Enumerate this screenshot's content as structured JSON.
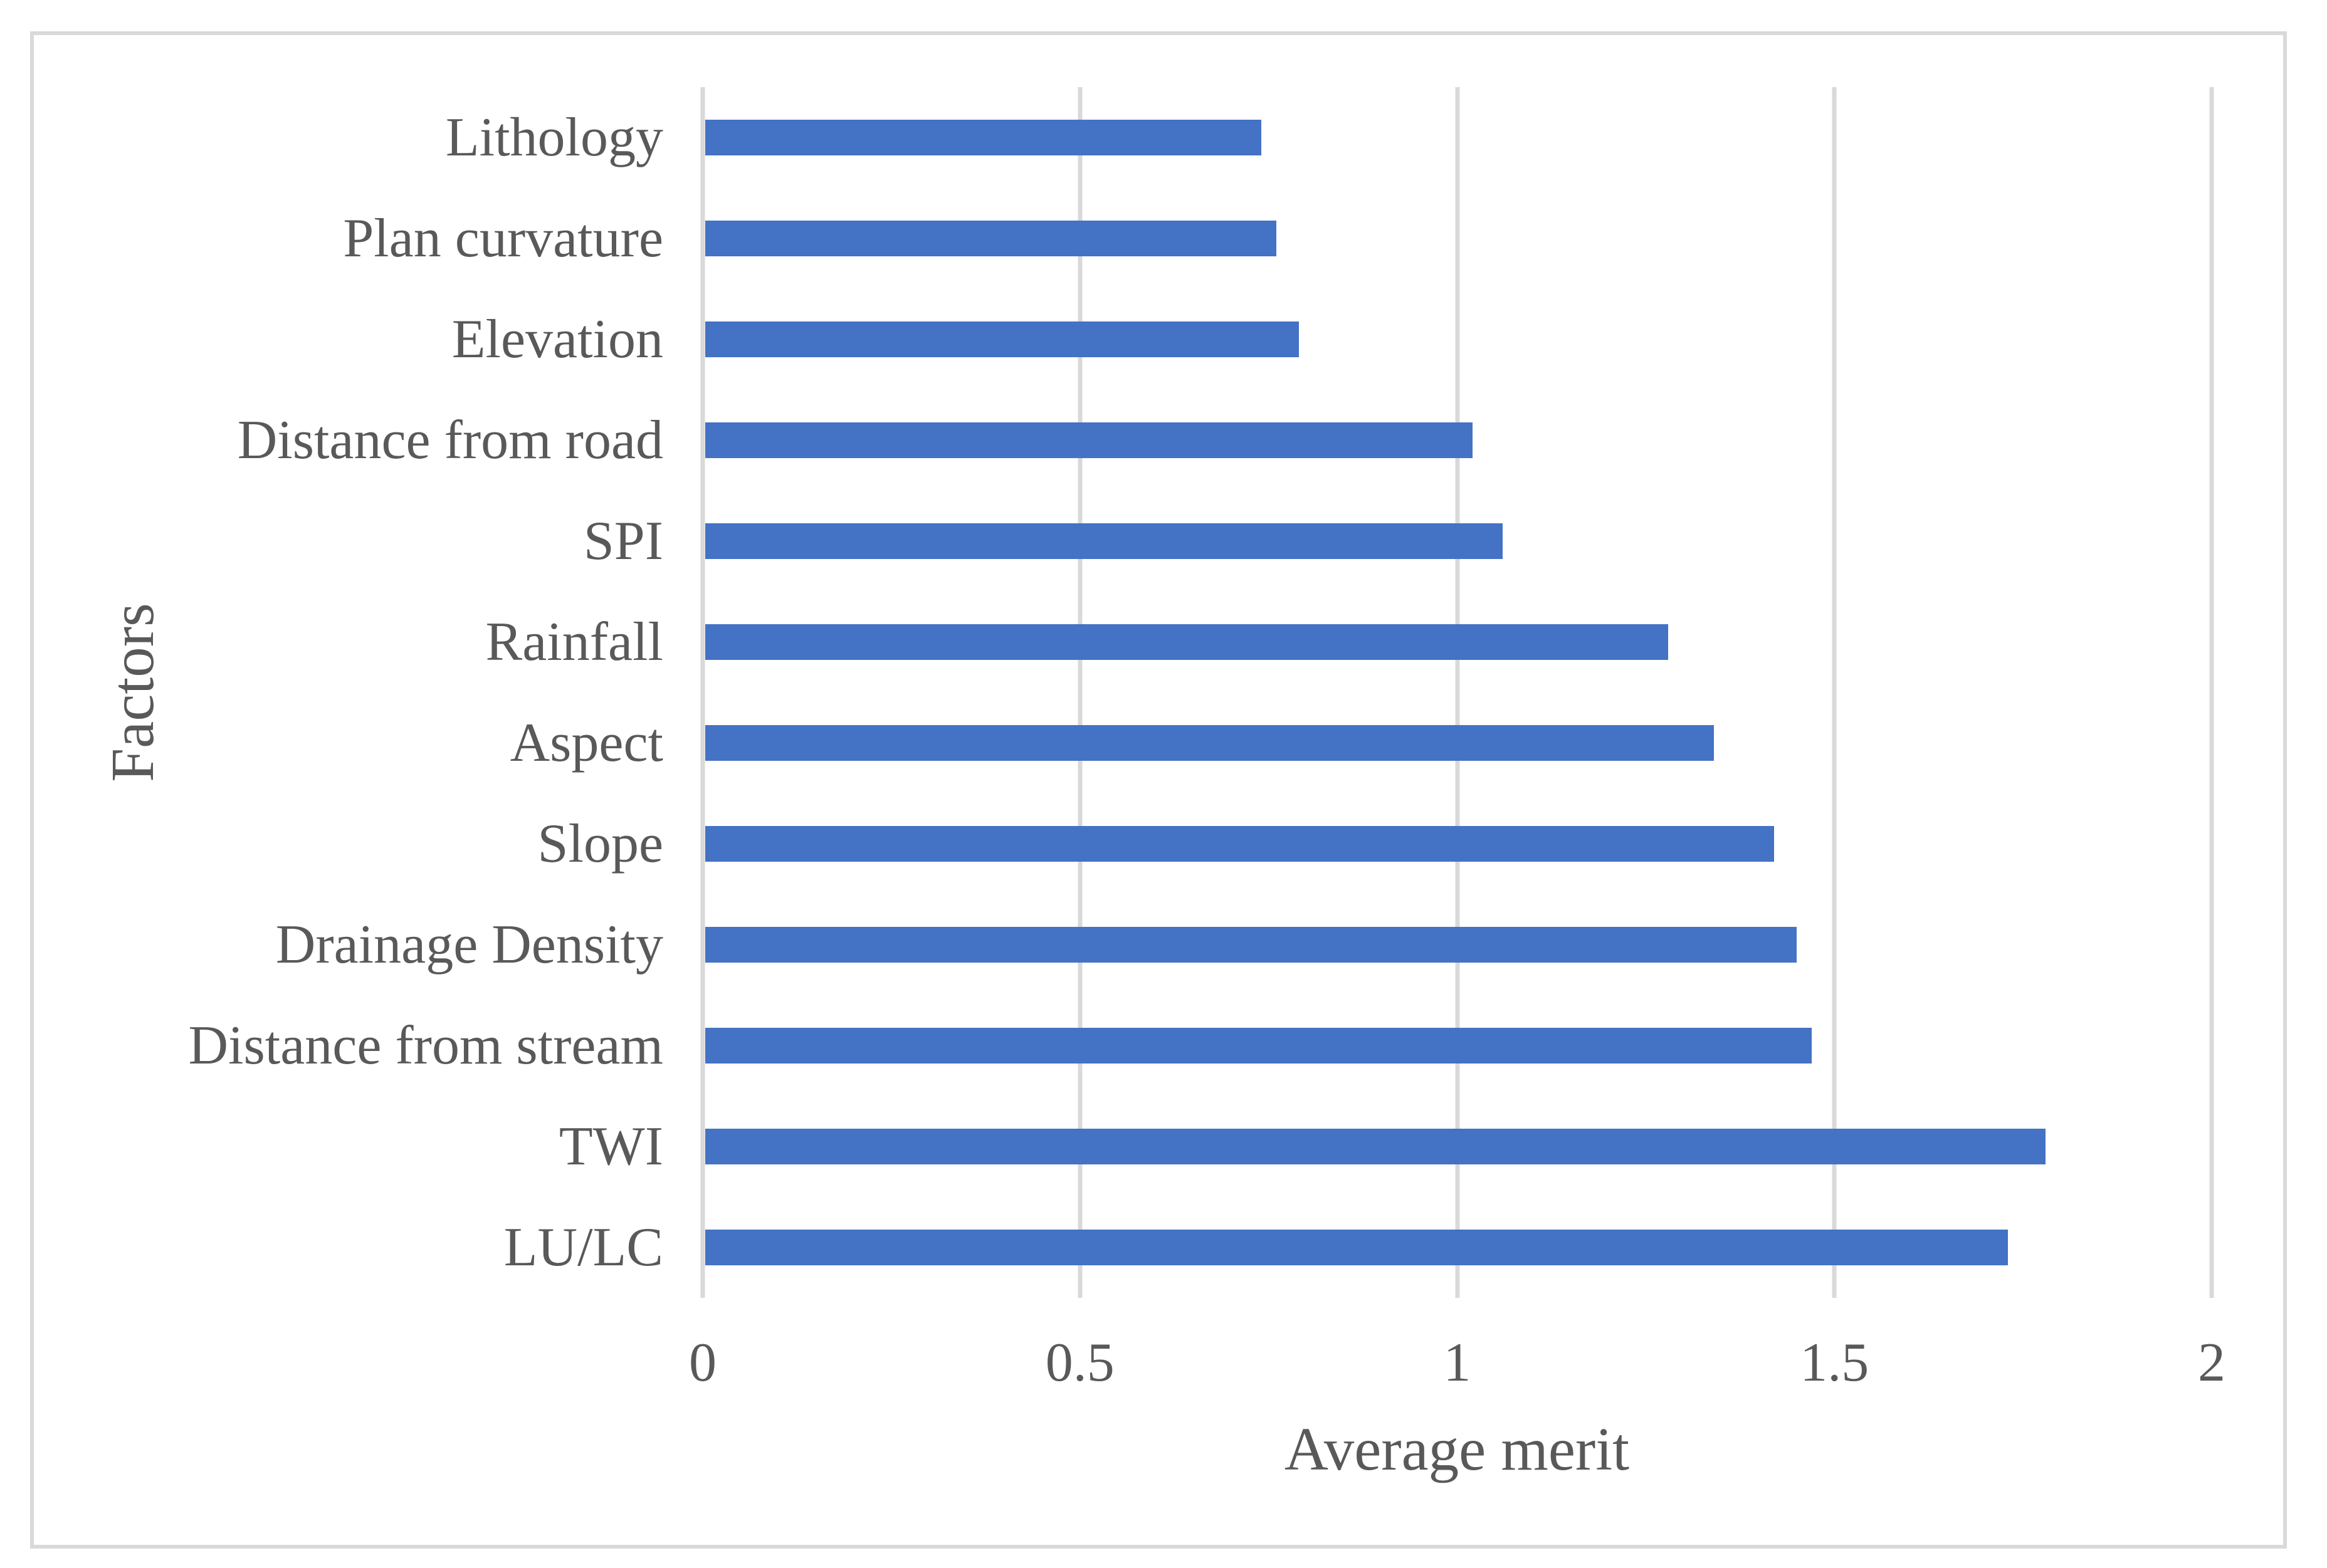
{
  "chart_data": {
    "type": "bar",
    "orientation": "horizontal",
    "title": "",
    "xlabel": "Average merit",
    "ylabel": "Factors",
    "xlim": [
      0,
      2
    ],
    "xtick_values": [
      0,
      0.5,
      1,
      1.5,
      2
    ],
    "xtick_labels": [
      "0",
      "0.5",
      "1",
      "1.5",
      "2"
    ],
    "grid": true,
    "legend": false,
    "categories": [
      "Lithology",
      "Plan curvature",
      "Elevation",
      "Distance from road",
      "SPI",
      "Rainfall",
      "Aspect",
      "Slope",
      "Drainage Density",
      "Distance from stream",
      "TWI",
      "LU/LC"
    ],
    "values": [
      0.74,
      0.76,
      0.79,
      1.02,
      1.06,
      1.28,
      1.34,
      1.42,
      1.45,
      1.47,
      1.78,
      1.73
    ],
    "bar_color": "#4472C4",
    "gridline_color": "#D9D9D9",
    "border_color": "#D9D9D9",
    "text_color": "#595959"
  }
}
